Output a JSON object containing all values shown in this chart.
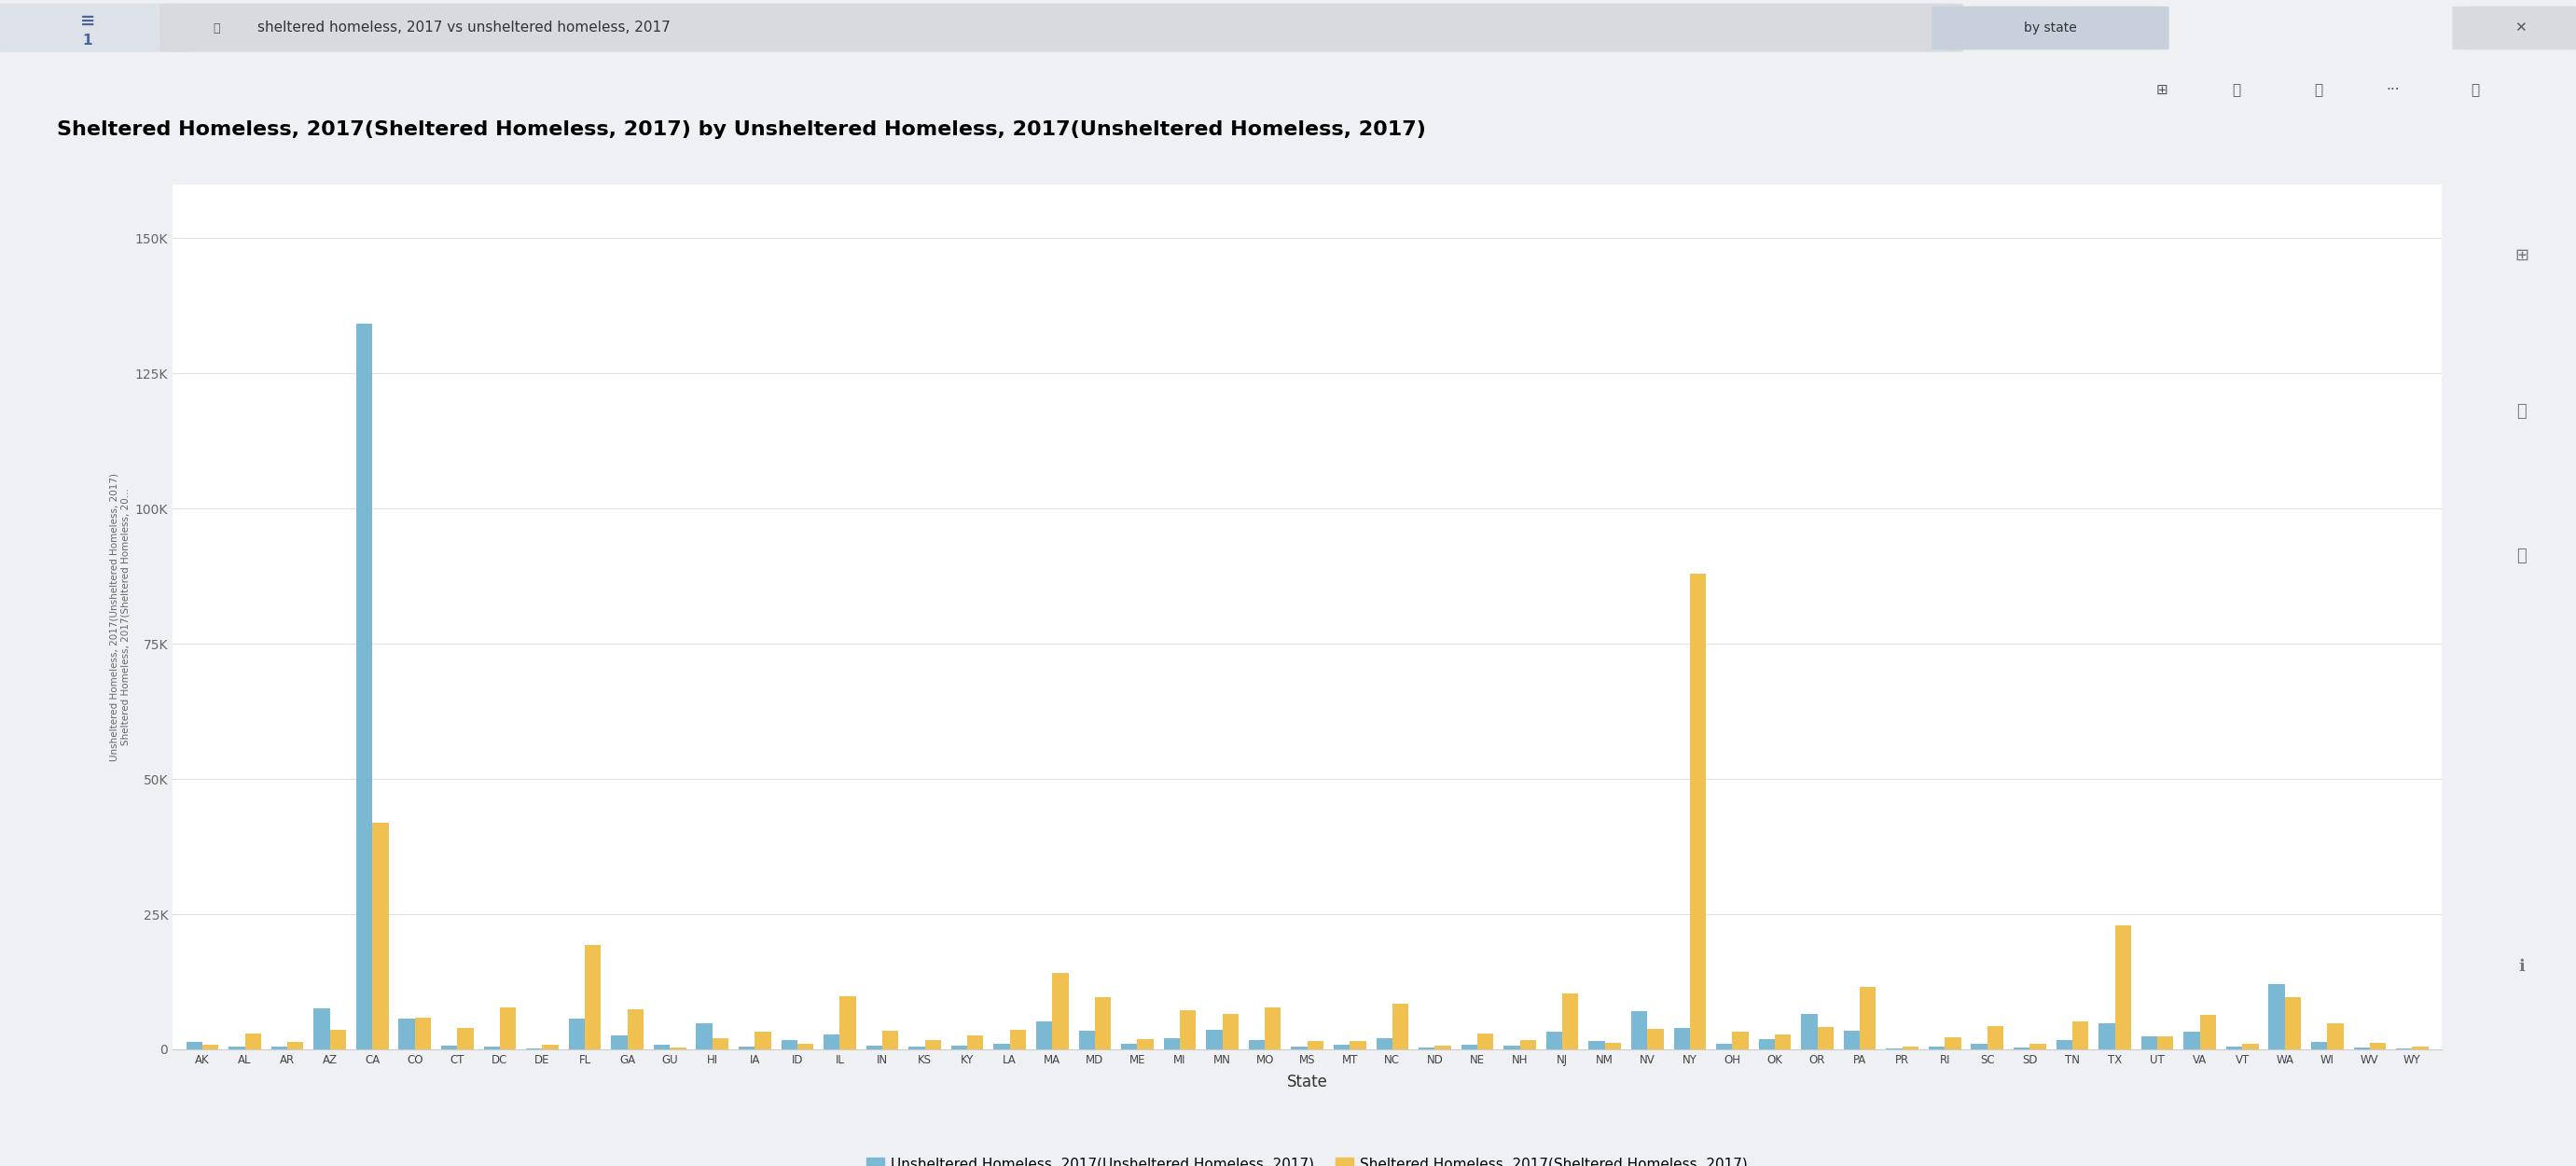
{
  "title": "Sheltered Homeless, 2017(Sheltered Homeless, 2017) by Unsheltered Homeless, 2017(Unsheltered Homeless, 2017)",
  "xlabel": "State",
  "ylabel_line1": "Unsheltered Homeless, 2017(Unsheltered Homeless, 2017)",
  "ylabel_line2": "Sheltered Homeless, 2017(Sheltered Homeless, 20...",
  "legend_unsheltered": "Unsheltered Homeless, 2017(Unsheltered Homeless, 2017)",
  "legend_sheltered": "Sheltered Homeless, 2017(Sheltered Homeless, 2017)",
  "unsheltered_color": "#7ab8d4",
  "sheltered_color": "#f0c050",
  "search_text": "sheltered homeless, 2017 vs unsheltered homeless, 2017",
  "by_text": "by state",
  "states": [
    "AK",
    "AL",
    "AR",
    "AZ",
    "CA",
    "CO",
    "CT",
    "DC",
    "DE",
    "FL",
    "GA",
    "GU",
    "HI",
    "IA",
    "ID",
    "IL",
    "IN",
    "KS",
    "KY",
    "LA",
    "MA",
    "MD",
    "ME",
    "MI",
    "MN",
    "MO",
    "MS",
    "MT",
    "NC",
    "ND",
    "NE",
    "NH",
    "NJ",
    "NM",
    "NV",
    "NY",
    "OH",
    "OK",
    "OR",
    "PA",
    "PR",
    "RI",
    "SC",
    "SD",
    "TN",
    "TX",
    "UT",
    "VA",
    "VT",
    "WA",
    "WI",
    "WV",
    "WY"
  ],
  "unsheltered": [
    1400,
    600,
    600,
    7600,
    134278,
    5700,
    700,
    600,
    200,
    5700,
    2600,
    800,
    4800,
    500,
    1700,
    2800,
    700,
    500,
    700,
    1000,
    5200,
    3400,
    1100,
    2100,
    3700,
    1800,
    500,
    900,
    2100,
    400,
    800,
    700,
    3200,
    1600,
    7100,
    4000,
    1100,
    1900,
    6500,
    3400,
    200,
    600,
    1100,
    400,
    1700,
    4900,
    2400,
    3200,
    600,
    12112,
    1400,
    300,
    200
  ],
  "sheltered": [
    800,
    2900,
    1400,
    3600,
    42000,
    5900,
    3900,
    7700,
    900,
    19400,
    7400,
    300,
    2000,
    3300,
    1100,
    9800,
    3400,
    1700,
    2600,
    3600,
    14200,
    9600,
    1900,
    7200,
    6500,
    7800,
    1600,
    1600,
    8400,
    700,
    3000,
    1800,
    10400,
    1200,
    3800,
    88000,
    3200,
    2800,
    4200,
    11500,
    600,
    2300,
    4300,
    1100,
    5200,
    23000,
    2500,
    6300,
    1000,
    9600,
    4800,
    1200,
    500
  ],
  "ylim": [
    0,
    160000
  ],
  "yticks": [
    0,
    25000,
    50000,
    75000,
    100000,
    125000,
    150000
  ],
  "ytick_labels": [
    "0",
    "25K",
    "50K",
    "75K",
    "100K",
    "125K",
    "150K"
  ],
  "bg_outer": "#eef0f4",
  "bg_header": "#eef0f4",
  "bg_chart_area": "#ffffff",
  "title_fontsize": 16,
  "tick_fontsize": 10,
  "legend_fontsize": 11
}
